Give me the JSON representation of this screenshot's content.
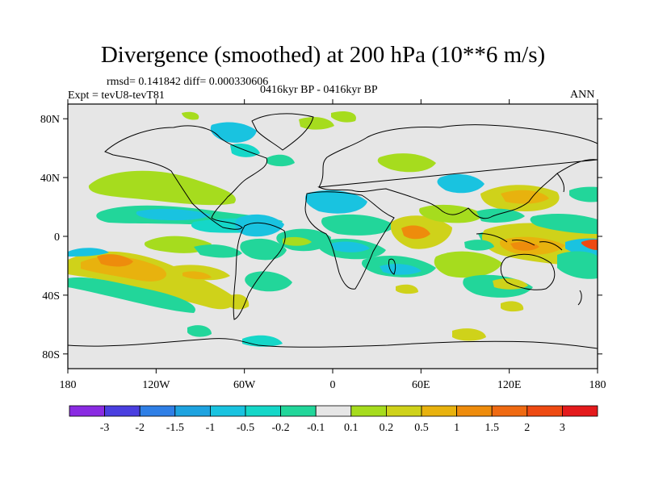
{
  "title": "Divergence (smoothed) at 200 hPa (10**6 m/s)",
  "stats_line": "rmsd= 0.141842 diff= 0.000330606",
  "experiment_line": "Expt = tevU8-tevT81",
  "period_line": "0416kyr BP - 0416kyr BP",
  "season": "ANN",
  "map": {
    "background_color": "#e6e6e6",
    "lat_ticks": [
      "80N",
      "40N",
      "0",
      "40S",
      "80S"
    ],
    "lon_ticks": [
      "180",
      "120W",
      "60W",
      "0",
      "60E",
      "120E",
      "180"
    ]
  },
  "colorbar": {
    "labels": [
      "-3",
      "-2",
      "-1.5",
      "-1",
      "-0.5",
      "-0.2",
      "-0.1",
      "0.1",
      "0.2",
      "0.5",
      "1",
      "1.5",
      "2",
      "3"
    ],
    "colors": [
      "#8a2be2",
      "#4a3fe0",
      "#2f7fe6",
      "#1ea3e0",
      "#19c3e0",
      "#15d7c8",
      "#22d69a",
      "#e6e6e6",
      "#a6dc1e",
      "#cfd21a",
      "#e8b20e",
      "#ee8c0c",
      "#ef6a12",
      "#ee4a12",
      "#e41a1c"
    ]
  }
}
